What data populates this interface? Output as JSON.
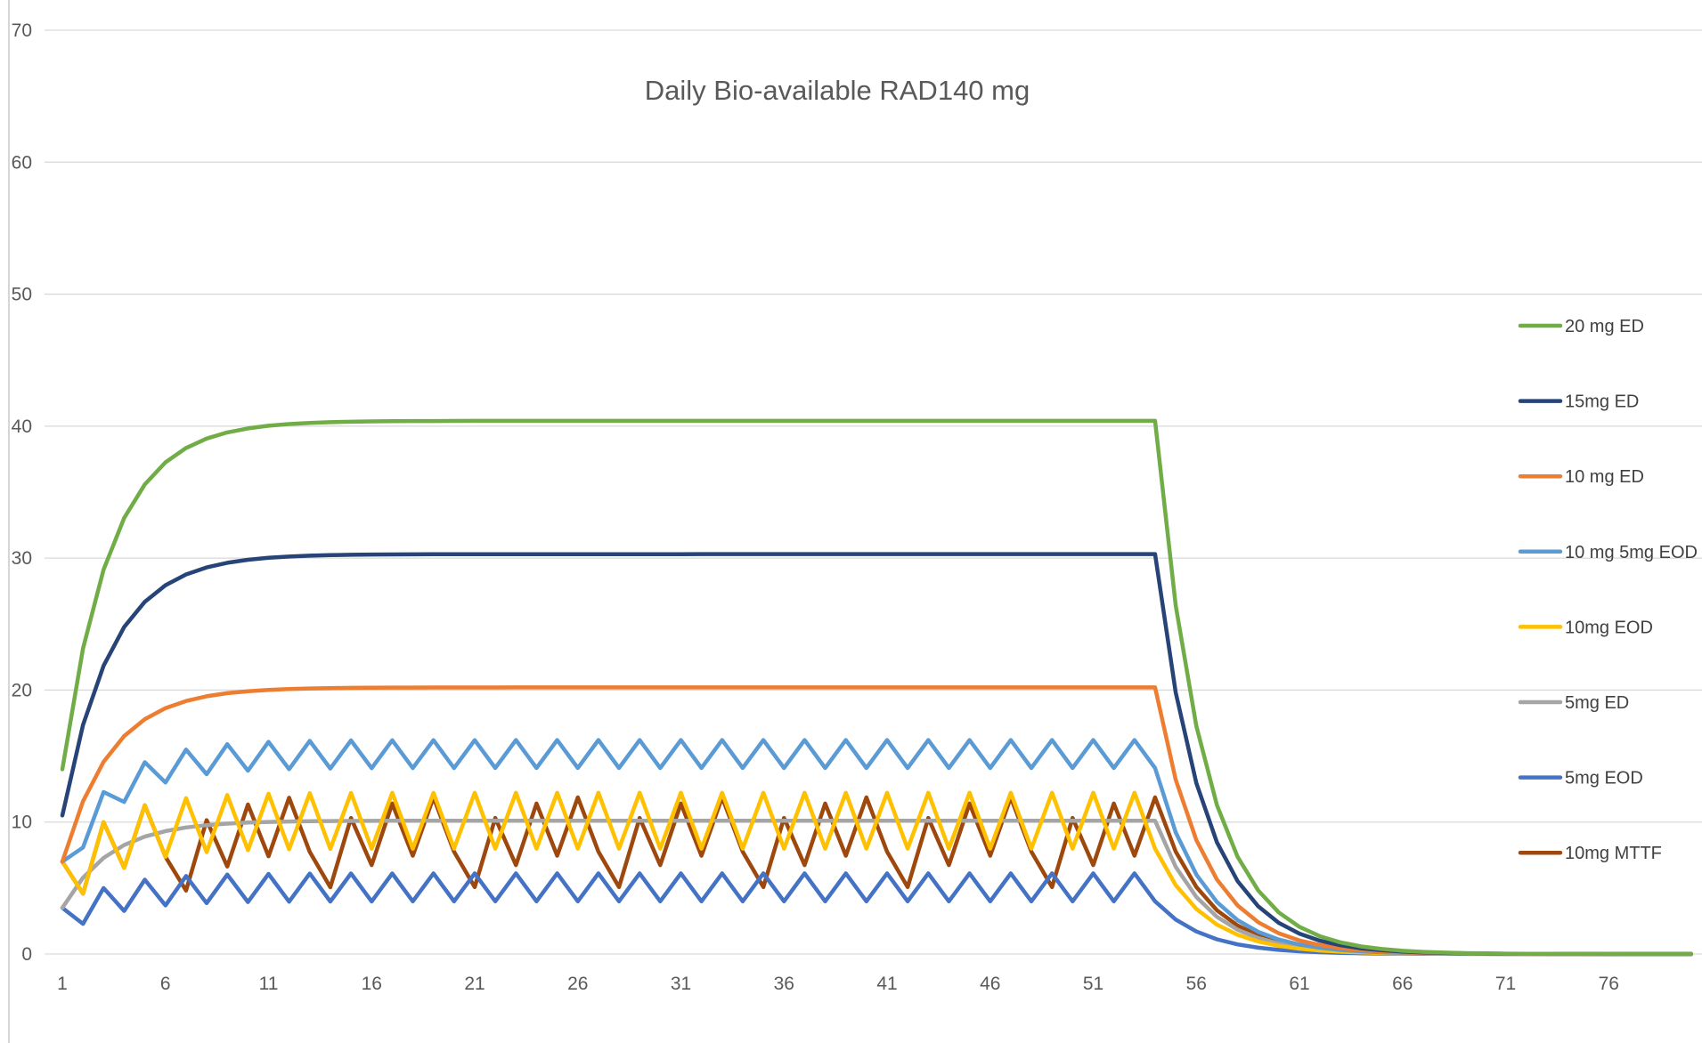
{
  "chart_data": {
    "type": "line",
    "title": "Daily Bio-available RAD140 mg",
    "xlabel": "",
    "ylabel": "",
    "ylim": [
      0,
      70
    ],
    "yticks": [
      0,
      10,
      20,
      30,
      40,
      50,
      60,
      70
    ],
    "xlim": [
      1,
      80
    ],
    "xticks": [
      1,
      6,
      11,
      16,
      21,
      26,
      31,
      36,
      41,
      46,
      51,
      56,
      61,
      66,
      71,
      76
    ],
    "grid": true,
    "legend_position": "right",
    "dosing_days": 54,
    "total_days": 80,
    "series": [
      {
        "name": "20 mg ED",
        "color": "#70ad47",
        "kind": "ed",
        "dose": 20
      },
      {
        "name": "15mg ED",
        "color": "#264478",
        "kind": "ed",
        "dose": 15
      },
      {
        "name": "10 mg ED",
        "color": "#ed7d31",
        "kind": "ed",
        "dose": 10
      },
      {
        "name": "10 mg 5mg EOD",
        "color": "#5b9bd5",
        "kind": "alt",
        "doses": [
          10,
          5
        ]
      },
      {
        "name": "10mg EOD",
        "color": "#ffc000",
        "kind": "alt",
        "doses": [
          10,
          0
        ]
      },
      {
        "name": "5mg ED",
        "color": "#a5a5a5",
        "kind": "ed",
        "dose": 5
      },
      {
        "name": "5mg EOD",
        "color": "#4472c4",
        "kind": "alt",
        "doses": [
          5,
          0
        ]
      },
      {
        "name": "10mg MTTF",
        "color": "#9e480e",
        "kind": "weekly",
        "weekly_doses": [
          10,
          0,
          10,
          0,
          10,
          0,
          0
        ]
      }
    ]
  }
}
